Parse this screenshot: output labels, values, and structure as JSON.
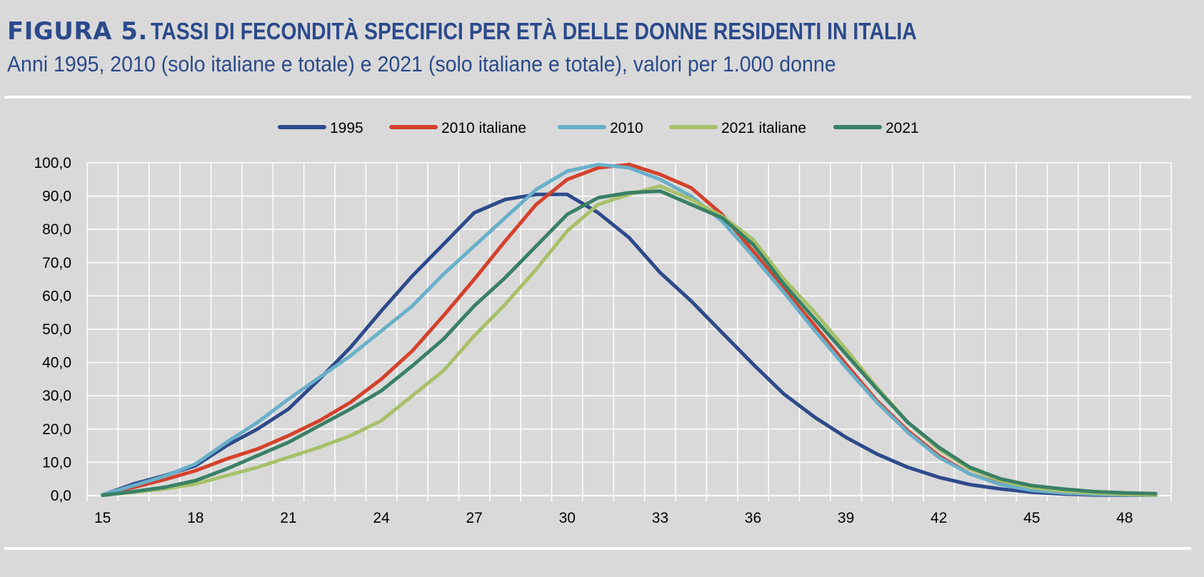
{
  "header": {
    "figure_label": "FIGURA 5.",
    "title": "TASSI DI FECONDITÀ SPECIFICI PER ETÀ DELLE DONNE RESIDENTI IN ITALIA",
    "subtitle": "Anni 1995, 2010 (solo italiane e totale) e 2021 (solo italiane e totale), valori per 1.000 donne"
  },
  "chart_data": {
    "type": "line",
    "title": "TASSI DI FECONDITÀ SPECIFICI PER ETÀ DELLE DONNE RESIDENTI IN ITALIA",
    "xlabel": "",
    "ylabel": "",
    "x": [
      15,
      16,
      17,
      18,
      19,
      20,
      21,
      22,
      23,
      24,
      25,
      26,
      27,
      28,
      29,
      30,
      31,
      32,
      33,
      34,
      35,
      36,
      37,
      38,
      39,
      40,
      41,
      42,
      43,
      44,
      45,
      46,
      47,
      48,
      49
    ],
    "x_tick_labels": [
      "15",
      "18",
      "21",
      "24",
      "27",
      "30",
      "33",
      "36",
      "39",
      "42",
      "45",
      "48"
    ],
    "y_tick_labels": [
      "0,0",
      "10,0",
      "20,0",
      "30,0",
      "40,0",
      "50,0",
      "60,0",
      "70,0",
      "80,0",
      "90,0",
      "100,0"
    ],
    "ylim": [
      0,
      100
    ],
    "grid": true,
    "legend_position": "top-center",
    "series": [
      {
        "name": "1995",
        "color": "#2e4a8b",
        "values": [
          0.2,
          3.5,
          6.0,
          9.0,
          15.0,
          20.0,
          26.0,
          35.0,
          44.5,
          55.5,
          66.0,
          75.5,
          85.0,
          89.0,
          90.5,
          90.5,
          85.0,
          77.5,
          67.0,
          58.5,
          49.0,
          39.5,
          30.5,
          23.5,
          17.5,
          12.5,
          8.5,
          5.5,
          3.3,
          2.0,
          1.0,
          0.5,
          0.2,
          0.1,
          0.1
        ]
      },
      {
        "name": "2010  italiane",
        "color": "#d4412b",
        "values": [
          0.2,
          2.5,
          4.8,
          7.5,
          11.0,
          14.0,
          18.0,
          22.5,
          28.0,
          35.0,
          43.5,
          54.0,
          65.0,
          76.5,
          87.5,
          95.0,
          98.5,
          99.5,
          96.5,
          92.5,
          84.5,
          73.5,
          62.0,
          51.0,
          39.5,
          28.5,
          19.5,
          12.0,
          6.5,
          3.5,
          1.7,
          0.8,
          0.4,
          0.2,
          0.1
        ]
      },
      {
        "name": "2010",
        "color": "#69afc9",
        "values": [
          0.3,
          3.0,
          5.8,
          9.5,
          16.0,
          22.0,
          29.0,
          35.5,
          42.0,
          49.5,
          57.0,
          66.5,
          75.0,
          83.5,
          92.0,
          97.5,
          99.5,
          98.5,
          95.0,
          90.0,
          82.5,
          72.0,
          61.0,
          49.5,
          38.5,
          28.0,
          19.0,
          11.5,
          6.5,
          3.3,
          1.6,
          0.8,
          0.4,
          0.2,
          0.1
        ]
      },
      {
        "name": "2021 italiane",
        "color": "#a8c06a",
        "values": [
          0.1,
          1.0,
          2.0,
          3.5,
          6.0,
          8.5,
          11.5,
          14.5,
          18.0,
          22.5,
          30.0,
          37.5,
          48.0,
          57.5,
          68.0,
          79.5,
          87.5,
          90.5,
          93.0,
          89.0,
          84.0,
          77.0,
          65.0,
          55.0,
          44.0,
          32.5,
          22.0,
          14.0,
          8.0,
          4.5,
          2.5,
          1.4,
          0.8,
          0.4,
          0.2
        ]
      },
      {
        "name": "2021",
        "color": "#3a8066",
        "values": [
          0.1,
          1.2,
          2.5,
          4.5,
          8.0,
          12.0,
          16.0,
          21.0,
          26.0,
          31.5,
          39.0,
          47.0,
          57.0,
          65.5,
          75.0,
          84.5,
          89.5,
          91.0,
          91.5,
          87.5,
          83.5,
          75.5,
          63.5,
          53.0,
          42.5,
          32.0,
          22.0,
          14.5,
          8.5,
          5.0,
          3.0,
          2.0,
          1.2,
          0.8,
          0.6
        ]
      }
    ]
  }
}
